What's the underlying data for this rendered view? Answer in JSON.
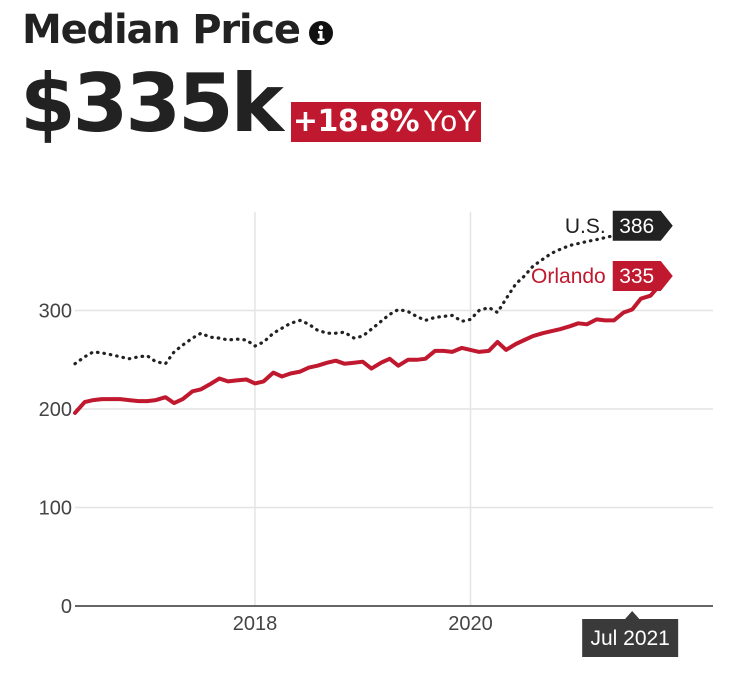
{
  "header": {
    "title": "Median Price",
    "info_icon": "info-icon",
    "headline_value": "$335k",
    "yoy_change": "+18.8%",
    "yoy_label": "YoY",
    "accent_color": "#c0182e"
  },
  "chart_data": {
    "type": "line",
    "title": "",
    "xlabel": "",
    "ylabel": "",
    "xlim": [
      2016.33,
      2022.25
    ],
    "ylim": [
      0,
      400
    ],
    "x_ticks": [
      {
        "value": 2018,
        "label": "2018"
      },
      {
        "value": 2020,
        "label": "2020"
      }
    ],
    "y_ticks": [
      {
        "value": 0,
        "label": "0"
      },
      {
        "value": 100,
        "label": "100"
      },
      {
        "value": 200,
        "label": "200"
      },
      {
        "value": 300,
        "label": "300"
      }
    ],
    "grid": true,
    "cursor": {
      "x": 2021.5,
      "label": "Jul 2021"
    },
    "series": [
      {
        "name": "Orlando",
        "color": "#c0182e",
        "style": "solid",
        "end_label": "335",
        "points": [
          [
            2016.33,
            196
          ],
          [
            2016.42,
            207
          ],
          [
            2016.5,
            209
          ],
          [
            2016.58,
            210
          ],
          [
            2016.67,
            210
          ],
          [
            2016.75,
            210
          ],
          [
            2016.83,
            209
          ],
          [
            2016.92,
            208
          ],
          [
            2017.0,
            208
          ],
          [
            2017.08,
            209
          ],
          [
            2017.17,
            212
          ],
          [
            2017.25,
            206
          ],
          [
            2017.33,
            210
          ],
          [
            2017.42,
            218
          ],
          [
            2017.5,
            220
          ],
          [
            2017.58,
            225
          ],
          [
            2017.67,
            231
          ],
          [
            2017.75,
            228
          ],
          [
            2017.83,
            229
          ],
          [
            2017.92,
            230
          ],
          [
            2018.0,
            226
          ],
          [
            2018.08,
            228
          ],
          [
            2018.17,
            237
          ],
          [
            2018.25,
            233
          ],
          [
            2018.33,
            236
          ],
          [
            2018.42,
            238
          ],
          [
            2018.5,
            242
          ],
          [
            2018.58,
            244
          ],
          [
            2018.67,
            247
          ],
          [
            2018.75,
            249
          ],
          [
            2018.83,
            246
          ],
          [
            2018.92,
            247
          ],
          [
            2019.0,
            248
          ],
          [
            2019.08,
            241
          ],
          [
            2019.17,
            247
          ],
          [
            2019.25,
            251
          ],
          [
            2019.33,
            244
          ],
          [
            2019.42,
            250
          ],
          [
            2019.5,
            250
          ],
          [
            2019.58,
            251
          ],
          [
            2019.67,
            259
          ],
          [
            2019.75,
            259
          ],
          [
            2019.83,
            258
          ],
          [
            2019.92,
            262
          ],
          [
            2020.0,
            260
          ],
          [
            2020.08,
            258
          ],
          [
            2020.17,
            259
          ],
          [
            2020.25,
            268
          ],
          [
            2020.33,
            260
          ],
          [
            2020.42,
            266
          ],
          [
            2020.5,
            270
          ],
          [
            2020.58,
            274
          ],
          [
            2020.67,
            277
          ],
          [
            2020.75,
            279
          ],
          [
            2020.83,
            281
          ],
          [
            2020.92,
            284
          ],
          [
            2021.0,
            287
          ],
          [
            2021.08,
            286
          ],
          [
            2021.17,
            291
          ],
          [
            2021.25,
            290
          ],
          [
            2021.33,
            290
          ],
          [
            2021.42,
            298
          ],
          [
            2021.5,
            301
          ],
          [
            2021.58,
            312
          ],
          [
            2021.67,
            315
          ],
          [
            2021.75,
            325
          ],
          [
            2021.83,
            335
          ]
        ]
      },
      {
        "name": "U.S.",
        "color": "#222222",
        "style": "dotted",
        "end_label": "386",
        "points": [
          [
            2016.33,
            246
          ],
          [
            2016.42,
            253
          ],
          [
            2016.5,
            258
          ],
          [
            2016.58,
            257
          ],
          [
            2016.67,
            255
          ],
          [
            2016.75,
            253
          ],
          [
            2016.83,
            251
          ],
          [
            2016.92,
            253
          ],
          [
            2017.0,
            254
          ],
          [
            2017.08,
            248
          ],
          [
            2017.17,
            246
          ],
          [
            2017.25,
            258
          ],
          [
            2017.33,
            265
          ],
          [
            2017.42,
            272
          ],
          [
            2017.5,
            277
          ],
          [
            2017.58,
            273
          ],
          [
            2017.67,
            272
          ],
          [
            2017.75,
            270
          ],
          [
            2017.83,
            271
          ],
          [
            2017.92,
            270
          ],
          [
            2018.0,
            264
          ],
          [
            2018.08,
            268
          ],
          [
            2018.17,
            277
          ],
          [
            2018.25,
            282
          ],
          [
            2018.33,
            287
          ],
          [
            2018.42,
            290
          ],
          [
            2018.5,
            286
          ],
          [
            2018.58,
            280
          ],
          [
            2018.67,
            277
          ],
          [
            2018.75,
            277
          ],
          [
            2018.83,
            278
          ],
          [
            2018.92,
            272
          ],
          [
            2019.0,
            274
          ],
          [
            2019.08,
            281
          ],
          [
            2019.17,
            289
          ],
          [
            2019.25,
            296
          ],
          [
            2019.33,
            301
          ],
          [
            2019.42,
            299
          ],
          [
            2019.5,
            294
          ],
          [
            2019.58,
            290
          ],
          [
            2019.67,
            293
          ],
          [
            2019.75,
            294
          ],
          [
            2019.83,
            295
          ],
          [
            2019.92,
            289
          ],
          [
            2020.0,
            291
          ],
          [
            2020.08,
            300
          ],
          [
            2020.17,
            303
          ],
          [
            2020.25,
            298
          ],
          [
            2020.33,
            312
          ],
          [
            2020.42,
            327
          ],
          [
            2020.5,
            335
          ],
          [
            2020.58,
            345
          ],
          [
            2020.67,
            352
          ],
          [
            2020.75,
            358
          ],
          [
            2020.83,
            362
          ],
          [
            2020.92,
            366
          ],
          [
            2021.0,
            368
          ],
          [
            2021.08,
            370
          ],
          [
            2021.17,
            372
          ],
          [
            2021.25,
            374
          ],
          [
            2021.33,
            376
          ],
          [
            2021.42,
            378
          ],
          [
            2021.5,
            379
          ],
          [
            2021.58,
            381
          ],
          [
            2021.67,
            383
          ],
          [
            2021.75,
            385
          ],
          [
            2021.83,
            386
          ]
        ]
      }
    ]
  }
}
